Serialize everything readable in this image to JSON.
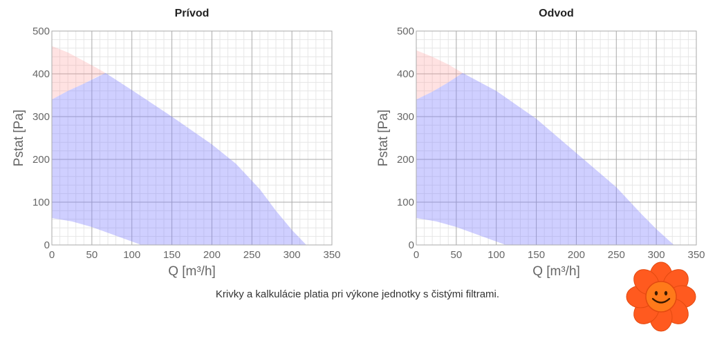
{
  "footnote": "Krivky a kalkulácie platia pri výkone jednotky s čistými filtrami.",
  "colors": {
    "grid_major": "#aaaaaa",
    "grid_minor": "#e6e6e6",
    "limit_area": "rgba(255,150,150,0.28)",
    "operating_area": "rgba(130,130,255,0.38)",
    "mascot_petals": "#ff5a1f",
    "mascot_center": "#ff7a1a"
  },
  "mascot": {
    "icon": "smiling-flower-icon"
  },
  "chart_data": [
    {
      "type": "area",
      "title": "Prívod",
      "xlabel": "Q [m³/h]",
      "ylabel": "Pstat [Pa]",
      "xlim": [
        0,
        350
      ],
      "ylim": [
        0,
        500
      ],
      "xticks": [
        0,
        50,
        100,
        150,
        200,
        250,
        300,
        350
      ],
      "yticks": [
        0,
        100,
        200,
        300,
        400,
        500
      ],
      "grid": true,
      "series": [
        {
          "role": "limit-region",
          "color": "pink",
          "upper": [
            [
              0,
              465
            ],
            [
              20,
              450
            ],
            [
              40,
              430
            ],
            [
              55,
              415
            ],
            [
              67,
              402
            ]
          ],
          "lower": [
            [
              0,
              340
            ],
            [
              20,
              360
            ],
            [
              40,
              377
            ],
            [
              55,
              392
            ],
            [
              67,
              402
            ]
          ]
        },
        {
          "role": "operating-region",
          "color": "blue",
          "upper": [
            [
              0,
              340
            ],
            [
              20,
              360
            ],
            [
              40,
              377
            ],
            [
              67,
              402
            ],
            [
              100,
              362
            ],
            [
              150,
              300
            ],
            [
              200,
              235
            ],
            [
              230,
              190
            ],
            [
              260,
              130
            ],
            [
              280,
              80
            ],
            [
              300,
              35
            ],
            [
              318,
              0
            ]
          ],
          "lower": [
            [
              0,
              63
            ],
            [
              25,
              55
            ],
            [
              50,
              42
            ],
            [
              75,
              25
            ],
            [
              100,
              8
            ],
            [
              112,
              0
            ]
          ]
        }
      ]
    },
    {
      "type": "area",
      "title": "Odvod",
      "xlabel": "Q [m³/h]",
      "ylabel": "Pstat [Pa]",
      "xlim": [
        0,
        350
      ],
      "ylim": [
        0,
        500
      ],
      "xticks": [
        0,
        50,
        100,
        150,
        200,
        250,
        300,
        350
      ],
      "yticks": [
        0,
        100,
        200,
        300,
        400,
        500
      ],
      "grid": true,
      "series": [
        {
          "role": "limit-region",
          "color": "pink",
          "upper": [
            [
              0,
              455
            ],
            [
              20,
              440
            ],
            [
              40,
              422
            ],
            [
              58,
              402
            ]
          ],
          "lower": [
            [
              0,
              340
            ],
            [
              20,
              358
            ],
            [
              40,
              380
            ],
            [
              58,
              402
            ]
          ]
        },
        {
          "role": "operating-region",
          "color": "blue",
          "upper": [
            [
              0,
              340
            ],
            [
              20,
              358
            ],
            [
              40,
              380
            ],
            [
              58,
              402
            ],
            [
              100,
              360
            ],
            [
              150,
              295
            ],
            [
              200,
              215
            ],
            [
              250,
              135
            ],
            [
              280,
              75
            ],
            [
              300,
              37
            ],
            [
              322,
              0
            ]
          ],
          "lower": [
            [
              0,
              63
            ],
            [
              25,
              55
            ],
            [
              50,
              42
            ],
            [
              75,
              25
            ],
            [
              100,
              8
            ],
            [
              112,
              0
            ]
          ]
        }
      ]
    }
  ]
}
